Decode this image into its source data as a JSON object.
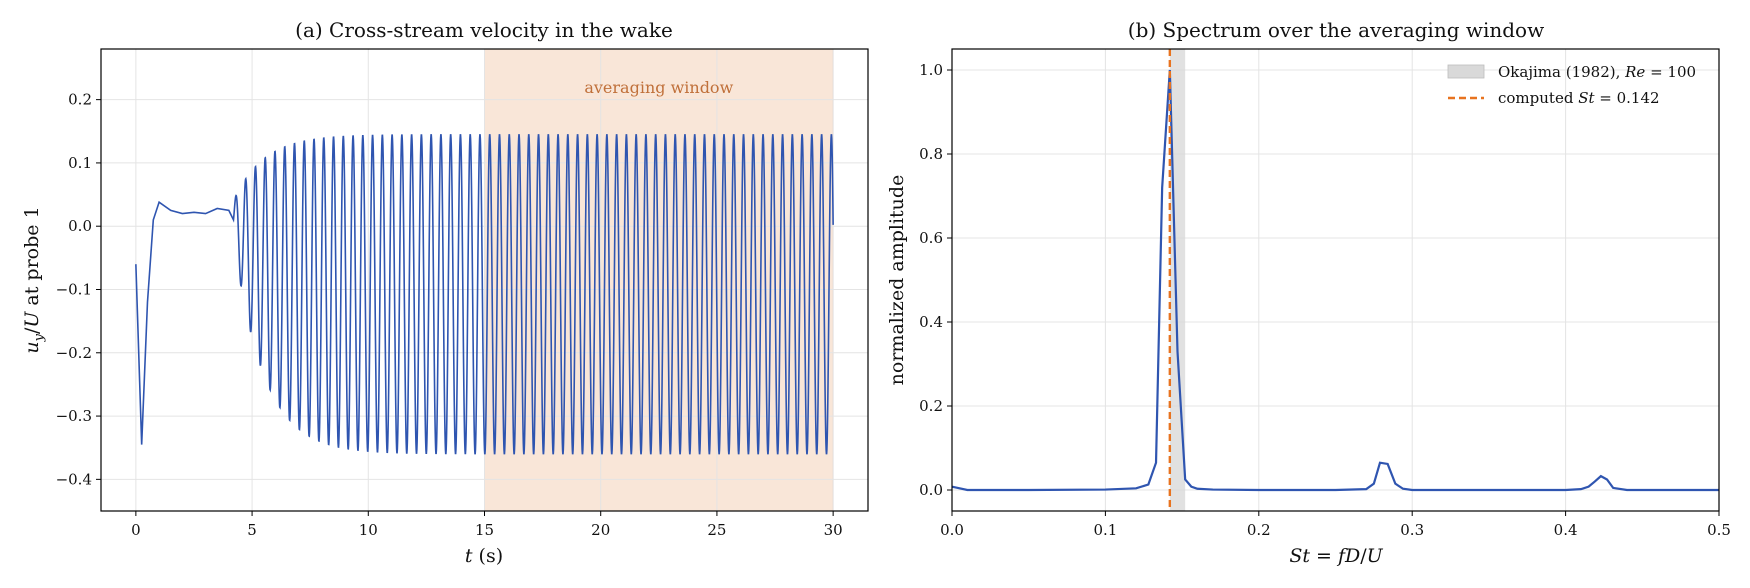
{
  "chart_data": [
    {
      "type": "line",
      "title": "(a) Cross-stream velocity in the wake",
      "xlabel": "t (s)",
      "ylabel": "u_y/U at probe 1",
      "xlim": [
        -1.5,
        31.5
      ],
      "ylim": [
        -0.45,
        0.28
      ],
      "xticks": [
        "0",
        "5",
        "10",
        "15",
        "20",
        "25",
        "30"
      ],
      "yticks": [
        "−0.4",
        "−0.3",
        "−0.2",
        "−0.1",
        "0.0",
        "0.1",
        "0.2"
      ],
      "grid": true,
      "color": "#2f55b0",
      "band": {
        "x0": 15,
        "x1": 30,
        "label": "averaging window",
        "color": "#f7dcc8"
      },
      "x": [
        0.0,
        0.25,
        0.5,
        0.75,
        1.0,
        1.5,
        2.0,
        2.5,
        3.0,
        3.5,
        4.0
      ],
      "values": [
        -0.06,
        -0.345,
        -0.12,
        0.01,
        0.038,
        0.025,
        0.02,
        0.022,
        0.02,
        0.028,
        0.025
      ],
      "settle": {
        "start": 4.2,
        "period": 0.42,
        "upper": 0.145,
        "lower": -0.36,
        "upper0": 0.04,
        "lower0": -0.02,
        "tau": 1.3,
        "end": 30
      }
    },
    {
      "type": "line",
      "title": "(b) Spectrum over the averaging window",
      "xlabel": "St = fD/U",
      "ylabel": "normalized amplitude",
      "xlim": [
        0.0,
        0.5
      ],
      "ylim": [
        -0.05,
        1.05
      ],
      "xticks": [
        "0.0",
        "0.1",
        "0.2",
        "0.3",
        "0.4",
        "0.5"
      ],
      "yticks": [
        "0.0",
        "0.2",
        "0.4",
        "0.6",
        "0.8",
        "1.0"
      ],
      "grid": true,
      "legend_position": "top-right",
      "legend": [
        "Okajima (1982), Re = 100",
        "computed St = 0.142"
      ],
      "reference_band": {
        "x0": 0.142,
        "x1": 0.152,
        "color": "#d9d9d9"
      },
      "computed_line": {
        "x": 0.142,
        "color": "#e8731f"
      },
      "color": "#2f55b0",
      "x": [
        0.0,
        0.005,
        0.01,
        0.05,
        0.1,
        0.12,
        0.128,
        0.133,
        0.137,
        0.142,
        0.147,
        0.152,
        0.156,
        0.16,
        0.17,
        0.2,
        0.25,
        0.27,
        0.275,
        0.279,
        0.284,
        0.289,
        0.294,
        0.3,
        0.35,
        0.4,
        0.41,
        0.415,
        0.419,
        0.423,
        0.427,
        0.431,
        0.44,
        0.5
      ],
      "values": [
        0.008,
        0.004,
        0.0,
        0.0,
        0.001,
        0.004,
        0.013,
        0.065,
        0.72,
        1.0,
        0.33,
        0.025,
        0.008,
        0.003,
        0.001,
        0.0,
        0.0,
        0.002,
        0.015,
        0.065,
        0.062,
        0.015,
        0.003,
        0.0,
        0.0,
        0.0,
        0.002,
        0.008,
        0.02,
        0.033,
        0.025,
        0.005,
        0.0,
        0.0
      ]
    }
  ]
}
